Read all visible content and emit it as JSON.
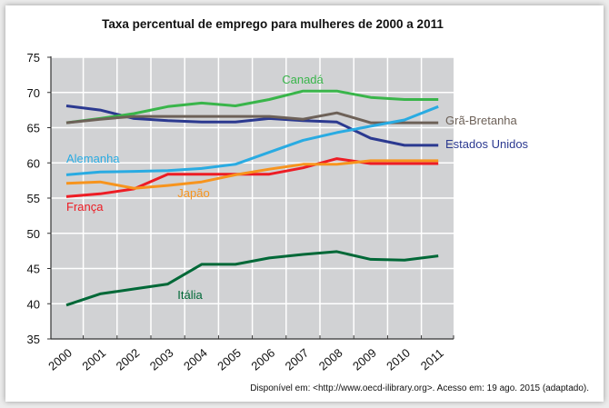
{
  "chart_data": {
    "type": "line",
    "title": "Taxa percentual de emprego para mulheres de 2000 a 2011",
    "xlabel": "",
    "ylabel": "",
    "x": [
      "2000",
      "2001",
      "2002",
      "2003",
      "2004",
      "2005",
      "2006",
      "2007",
      "2008",
      "2009",
      "2010",
      "2011"
    ],
    "ylim": [
      35,
      75
    ],
    "yticks": [
      75,
      70,
      65,
      60,
      55,
      50,
      45,
      40,
      35
    ],
    "grid": true,
    "legend": "inline-labels",
    "series": [
      {
        "name": "Estados Unidos",
        "color": "#2b3990",
        "values": [
          68.1,
          67.5,
          66.3,
          66.0,
          65.8,
          65.8,
          66.3,
          66.0,
          65.8,
          63.5,
          62.5,
          62.5
        ]
      },
      {
        "name": "Canadá",
        "color": "#39b54a",
        "values": [
          65.7,
          66.3,
          67.0,
          68.0,
          68.5,
          68.1,
          69.0,
          70.2,
          70.2,
          69.3,
          69.0,
          69.0
        ]
      },
      {
        "name": "Grã-Bretanha",
        "color": "#6d6158",
        "values": [
          65.7,
          66.2,
          66.6,
          66.6,
          66.6,
          66.6,
          66.6,
          66.2,
          67.1,
          65.7,
          65.7,
          65.7
        ]
      },
      {
        "name": "Alemanha",
        "color": "#29abe2",
        "values": [
          58.3,
          58.7,
          58.8,
          58.9,
          59.2,
          59.8,
          61.5,
          63.2,
          64.3,
          65.2,
          66.1,
          68.0
        ]
      },
      {
        "name": "França",
        "color": "#ed1c24",
        "values": [
          55.2,
          55.6,
          56.3,
          58.4,
          58.4,
          58.4,
          58.4,
          59.3,
          60.6,
          59.9,
          59.9,
          59.9
        ]
      },
      {
        "name": "Japão",
        "color": "#f7941d",
        "values": [
          57.1,
          57.3,
          56.4,
          56.8,
          57.3,
          58.3,
          59.1,
          59.8,
          59.8,
          60.3,
          60.3,
          60.3
        ]
      },
      {
        "name": "Itália",
        "color": "#006837",
        "values": [
          39.8,
          41.4,
          42.1,
          42.8,
          45.6,
          45.6,
          46.5,
          47.0,
          47.4,
          46.3,
          46.2,
          46.8
        ]
      }
    ],
    "source": "Disponível em: <http://www.oecd-ilibrary.org>. Acesso em: 19 ago. 2015 (adaptado)."
  }
}
